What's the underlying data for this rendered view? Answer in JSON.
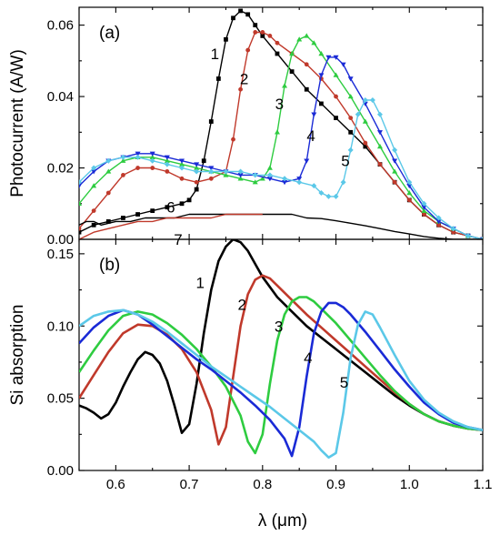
{
  "figure": {
    "x_label": "λ (μm)"
  },
  "chart_data": [
    {
      "type": "line",
      "panel_label": "(a)",
      "ylabel": "Photocurrent (A/W)",
      "xlabel": "",
      "xlim": [
        0.55,
        1.1
      ],
      "ylim": [
        0,
        0.065
      ],
      "xticks": [
        0.6,
        0.7,
        0.8,
        0.9,
        1.0,
        1.1
      ],
      "xtick_labels": [],
      "yticks": [
        0.0,
        0.02,
        0.04,
        0.06
      ],
      "ytick_labels": [
        "0.00",
        "0.02",
        "0.04",
        "0.06"
      ],
      "markers": true,
      "series": [
        {
          "name": "1",
          "color": "#000000",
          "marker": "square",
          "x": [
            0.55,
            0.57,
            0.59,
            0.61,
            0.63,
            0.65,
            0.67,
            0.69,
            0.7,
            0.71,
            0.72,
            0.73,
            0.74,
            0.75,
            0.76,
            0.77,
            0.78,
            0.79,
            0.8,
            0.82,
            0.84,
            0.86,
            0.88,
            0.9,
            0.92,
            0.94,
            0.96,
            0.98,
            1.0,
            1.02,
            1.04,
            1.06,
            1.08,
            1.1
          ],
          "y": [
            0.002,
            0.004,
            0.005,
            0.006,
            0.007,
            0.008,
            0.009,
            0.01,
            0.011,
            0.014,
            0.022,
            0.033,
            0.045,
            0.056,
            0.062,
            0.064,
            0.063,
            0.06,
            0.057,
            0.052,
            0.047,
            0.042,
            0.038,
            0.034,
            0.03,
            0.026,
            0.021,
            0.016,
            0.011,
            0.007,
            0.004,
            0.002,
            0.001,
            0.0
          ]
        },
        {
          "name": "2",
          "color": "#c0392b",
          "marker": "circle",
          "x": [
            0.55,
            0.57,
            0.59,
            0.61,
            0.63,
            0.65,
            0.67,
            0.69,
            0.71,
            0.73,
            0.75,
            0.76,
            0.77,
            0.78,
            0.79,
            0.8,
            0.81,
            0.82,
            0.84,
            0.86,
            0.88,
            0.9,
            0.92,
            0.94,
            0.96,
            0.98,
            1.0,
            1.02,
            1.04,
            1.06,
            1.08,
            1.1
          ],
          "y": [
            0.003,
            0.008,
            0.013,
            0.018,
            0.02,
            0.02,
            0.019,
            0.017,
            0.016,
            0.017,
            0.019,
            0.028,
            0.042,
            0.053,
            0.058,
            0.058,
            0.057,
            0.055,
            0.052,
            0.049,
            0.045,
            0.04,
            0.034,
            0.027,
            0.021,
            0.016,
            0.011,
            0.007,
            0.004,
            0.002,
            0.001,
            0.0
          ]
        },
        {
          "name": "3",
          "color": "#2ecc40",
          "marker": "triangle-up",
          "x": [
            0.55,
            0.57,
            0.59,
            0.61,
            0.63,
            0.65,
            0.67,
            0.69,
            0.71,
            0.73,
            0.75,
            0.77,
            0.79,
            0.8,
            0.81,
            0.82,
            0.83,
            0.84,
            0.85,
            0.86,
            0.87,
            0.88,
            0.9,
            0.92,
            0.94,
            0.96,
            0.98,
            1.0,
            1.02,
            1.04,
            1.06,
            1.08,
            1.1
          ],
          "y": [
            0.01,
            0.015,
            0.019,
            0.022,
            0.023,
            0.023,
            0.022,
            0.021,
            0.02,
            0.019,
            0.018,
            0.017,
            0.016,
            0.017,
            0.02,
            0.03,
            0.043,
            0.052,
            0.056,
            0.057,
            0.055,
            0.052,
            0.046,
            0.04,
            0.033,
            0.026,
            0.019,
            0.013,
            0.008,
            0.005,
            0.003,
            0.001,
            0.0
          ]
        },
        {
          "name": "4",
          "color": "#1a2ad6",
          "marker": "triangle-down",
          "x": [
            0.55,
            0.57,
            0.59,
            0.61,
            0.63,
            0.65,
            0.67,
            0.69,
            0.71,
            0.73,
            0.75,
            0.77,
            0.79,
            0.81,
            0.83,
            0.85,
            0.86,
            0.87,
            0.88,
            0.89,
            0.9,
            0.91,
            0.92,
            0.94,
            0.96,
            0.98,
            1.0,
            1.02,
            1.04,
            1.06,
            1.08,
            1.1
          ],
          "y": [
            0.015,
            0.019,
            0.022,
            0.023,
            0.024,
            0.024,
            0.023,
            0.022,
            0.021,
            0.02,
            0.019,
            0.018,
            0.018,
            0.017,
            0.016,
            0.017,
            0.022,
            0.035,
            0.046,
            0.051,
            0.051,
            0.049,
            0.045,
            0.038,
            0.03,
            0.022,
            0.015,
            0.009,
            0.005,
            0.003,
            0.001,
            0.0
          ]
        },
        {
          "name": "5",
          "color": "#5bc8e8",
          "marker": "diamond",
          "x": [
            0.55,
            0.57,
            0.59,
            0.61,
            0.63,
            0.65,
            0.67,
            0.69,
            0.71,
            0.73,
            0.75,
            0.77,
            0.79,
            0.81,
            0.83,
            0.85,
            0.87,
            0.88,
            0.89,
            0.9,
            0.91,
            0.92,
            0.93,
            0.94,
            0.95,
            0.96,
            0.98,
            1.0,
            1.02,
            1.04,
            1.06,
            1.08,
            1.1
          ],
          "y": [
            0.016,
            0.02,
            0.022,
            0.023,
            0.023,
            0.022,
            0.021,
            0.02,
            0.019,
            0.019,
            0.019,
            0.019,
            0.018,
            0.018,
            0.017,
            0.016,
            0.015,
            0.013,
            0.012,
            0.012,
            0.016,
            0.025,
            0.035,
            0.039,
            0.039,
            0.035,
            0.025,
            0.016,
            0.01,
            0.006,
            0.003,
            0.001,
            0.0
          ]
        },
        {
          "name": "6",
          "color": "#000000",
          "marker": "none",
          "x": [
            0.55,
            0.56,
            0.57,
            0.58,
            0.6,
            0.62,
            0.64,
            0.66,
            0.68,
            0.7,
            0.72,
            0.74,
            0.76,
            0.78,
            0.8,
            0.82,
            0.84,
            0.86,
            0.88,
            0.9,
            0.92,
            0.94,
            0.96,
            0.98,
            1.0,
            1.02,
            1.04,
            1.06,
            1.08,
            1.1
          ],
          "y": [
            0.004,
            0.005,
            0.005,
            0.004,
            0.005,
            0.005,
            0.006,
            0.006,
            0.006,
            0.007,
            0.007,
            0.007,
            0.007,
            0.007,
            0.007,
            0.007,
            0.007,
            0.006,
            0.0058,
            0.0052,
            0.0045,
            0.0038,
            0.003,
            0.0022,
            0.0015,
            0.0008,
            0.0003,
            0.0,
            0.0,
            0.0
          ]
        },
        {
          "name": "7",
          "color": "#c0392b",
          "marker": "none",
          "x": [
            0.55,
            0.57,
            0.59,
            0.61,
            0.63,
            0.65,
            0.67,
            0.69,
            0.71,
            0.73,
            0.75,
            0.77,
            0.79,
            0.8
          ],
          "y": [
            0.0,
            0.002,
            0.003,
            0.004,
            0.005,
            0.005,
            0.006,
            0.006,
            0.006,
            0.006,
            0.007,
            0.007,
            0.007,
            0.007
          ]
        }
      ],
      "curve_labels": [
        {
          "text": "1",
          "x": 0.735,
          "y": 0.052
        },
        {
          "text": "2",
          "x": 0.775,
          "y": 0.045
        },
        {
          "text": "3",
          "x": 0.823,
          "y": 0.038
        },
        {
          "text": "4",
          "x": 0.866,
          "y": 0.029
        },
        {
          "text": "5",
          "x": 0.913,
          "y": 0.022
        },
        {
          "text": "6",
          "x": 0.675,
          "y": 0.009
        },
        {
          "text": "7",
          "x": 0.685,
          "y": 0.0
        }
      ]
    },
    {
      "type": "line",
      "panel_label": "(b)",
      "ylabel": "Si absorption",
      "xlabel": "λ (μm)",
      "xlim": [
        0.55,
        1.1
      ],
      "ylim": [
        0,
        0.16
      ],
      "xticks": [
        0.6,
        0.7,
        0.8,
        0.9,
        1.0,
        1.1
      ],
      "xtick_labels": [
        "0.6",
        "0.7",
        "0.8",
        "0.9",
        "1.0",
        "1.1"
      ],
      "yticks": [
        0.0,
        0.05,
        0.1,
        0.15
      ],
      "ytick_labels": [
        "0.00",
        "0.05",
        "0.10",
        "0.15"
      ],
      "markers": false,
      "series": [
        {
          "name": "1",
          "color": "#000000",
          "x": [
            0.55,
            0.56,
            0.57,
            0.58,
            0.59,
            0.6,
            0.61,
            0.62,
            0.63,
            0.64,
            0.65,
            0.66,
            0.67,
            0.68,
            0.69,
            0.7,
            0.71,
            0.72,
            0.73,
            0.74,
            0.75,
            0.76,
            0.77,
            0.78,
            0.79,
            0.8,
            0.82,
            0.84,
            0.86,
            0.88,
            0.9,
            0.92,
            0.94,
            0.96,
            0.98,
            1.0,
            1.02,
            1.04,
            1.06,
            1.08,
            1.1
          ],
          "y": [
            0.045,
            0.043,
            0.04,
            0.036,
            0.039,
            0.047,
            0.058,
            0.068,
            0.077,
            0.082,
            0.08,
            0.074,
            0.062,
            0.045,
            0.026,
            0.032,
            0.06,
            0.095,
            0.125,
            0.145,
            0.155,
            0.16,
            0.158,
            0.152,
            0.143,
            0.134,
            0.12,
            0.11,
            0.1,
            0.092,
            0.084,
            0.076,
            0.068,
            0.06,
            0.052,
            0.045,
            0.039,
            0.034,
            0.031,
            0.029,
            0.028
          ]
        },
        {
          "name": "2",
          "color": "#c0392b",
          "x": [
            0.55,
            0.57,
            0.59,
            0.61,
            0.63,
            0.65,
            0.67,
            0.69,
            0.71,
            0.73,
            0.74,
            0.75,
            0.76,
            0.77,
            0.78,
            0.79,
            0.8,
            0.81,
            0.82,
            0.84,
            0.86,
            0.88,
            0.9,
            0.92,
            0.94,
            0.96,
            0.98,
            1.0,
            1.02,
            1.04,
            1.06,
            1.08,
            1.1
          ],
          "y": [
            0.05,
            0.066,
            0.082,
            0.095,
            0.101,
            0.1,
            0.094,
            0.084,
            0.068,
            0.042,
            0.018,
            0.03,
            0.065,
            0.1,
            0.122,
            0.132,
            0.135,
            0.133,
            0.128,
            0.118,
            0.108,
            0.099,
            0.09,
            0.081,
            0.072,
            0.063,
            0.054,
            0.046,
            0.039,
            0.034,
            0.031,
            0.029,
            0.028
          ]
        },
        {
          "name": "3",
          "color": "#2ecc40",
          "x": [
            0.55,
            0.57,
            0.59,
            0.61,
            0.63,
            0.65,
            0.67,
            0.69,
            0.71,
            0.73,
            0.75,
            0.77,
            0.78,
            0.79,
            0.8,
            0.81,
            0.82,
            0.83,
            0.84,
            0.85,
            0.86,
            0.87,
            0.88,
            0.9,
            0.92,
            0.94,
            0.96,
            0.98,
            1.0,
            1.02,
            1.04,
            1.06,
            1.08,
            1.1
          ],
          "y": [
            0.068,
            0.083,
            0.097,
            0.107,
            0.11,
            0.108,
            0.102,
            0.094,
            0.084,
            0.072,
            0.058,
            0.038,
            0.02,
            0.012,
            0.025,
            0.06,
            0.09,
            0.108,
            0.117,
            0.12,
            0.12,
            0.117,
            0.112,
            0.102,
            0.09,
            0.078,
            0.066,
            0.055,
            0.046,
            0.039,
            0.034,
            0.031,
            0.029,
            0.028
          ]
        },
        {
          "name": "4",
          "color": "#1a2ad6",
          "x": [
            0.55,
            0.57,
            0.59,
            0.61,
            0.63,
            0.65,
            0.67,
            0.69,
            0.71,
            0.73,
            0.75,
            0.77,
            0.79,
            0.81,
            0.83,
            0.84,
            0.85,
            0.86,
            0.87,
            0.88,
            0.89,
            0.9,
            0.91,
            0.92,
            0.94,
            0.96,
            0.98,
            1.0,
            1.02,
            1.04,
            1.06,
            1.08,
            1.1
          ],
          "y": [
            0.088,
            0.099,
            0.107,
            0.111,
            0.108,
            0.101,
            0.093,
            0.085,
            0.077,
            0.07,
            0.062,
            0.054,
            0.045,
            0.035,
            0.022,
            0.01,
            0.03,
            0.065,
            0.095,
            0.11,
            0.116,
            0.116,
            0.113,
            0.108,
            0.096,
            0.083,
            0.07,
            0.058,
            0.047,
            0.039,
            0.033,
            0.03,
            0.028
          ]
        },
        {
          "name": "5",
          "color": "#5bc8e8",
          "x": [
            0.55,
            0.57,
            0.59,
            0.61,
            0.63,
            0.65,
            0.67,
            0.69,
            0.71,
            0.73,
            0.75,
            0.77,
            0.79,
            0.81,
            0.83,
            0.85,
            0.87,
            0.88,
            0.89,
            0.9,
            0.91,
            0.92,
            0.93,
            0.94,
            0.95,
            0.96,
            0.98,
            1.0,
            1.02,
            1.04,
            1.06,
            1.08,
            1.1
          ],
          "y": [
            0.1,
            0.107,
            0.11,
            0.111,
            0.108,
            0.103,
            0.096,
            0.088,
            0.08,
            0.072,
            0.065,
            0.058,
            0.051,
            0.044,
            0.036,
            0.028,
            0.02,
            0.014,
            0.009,
            0.012,
            0.04,
            0.078,
            0.101,
            0.11,
            0.108,
            0.099,
            0.08,
            0.062,
            0.049,
            0.04,
            0.034,
            0.03,
            0.028
          ]
        }
      ],
      "curve_labels": [
        {
          "text": "1",
          "x": 0.715,
          "y": 0.13
        },
        {
          "text": "2",
          "x": 0.772,
          "y": 0.115
        },
        {
          "text": "3",
          "x": 0.822,
          "y": 0.1
        },
        {
          "text": "4",
          "x": 0.862,
          "y": 0.078
        },
        {
          "text": "5",
          "x": 0.911,
          "y": 0.061
        }
      ]
    }
  ]
}
